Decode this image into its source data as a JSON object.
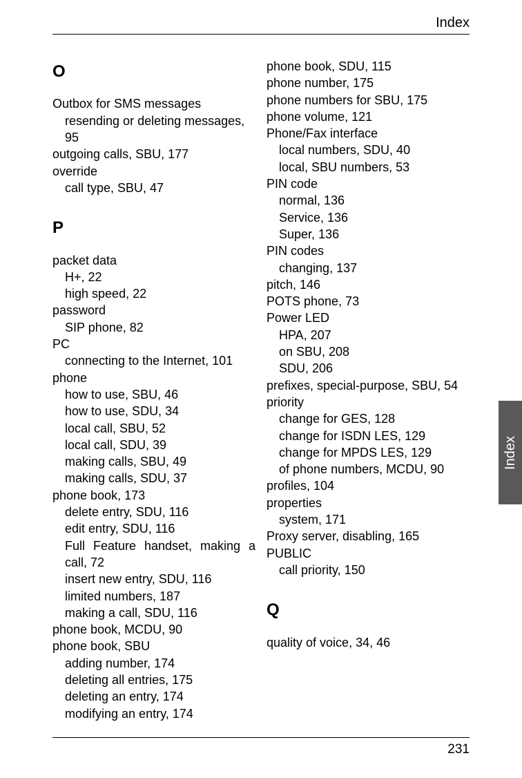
{
  "header": {
    "title": "Index"
  },
  "sideTab": {
    "label": "Index"
  },
  "footer": {
    "pageNumber": "231"
  },
  "letters": {
    "O": "O",
    "P": "P",
    "Q": "Q"
  },
  "left": {
    "o1": "Outbox for SMS messages",
    "o1a": "resending or deleting messages, 95",
    "o2": "outgoing calls, SBU, 177",
    "o3": "override",
    "o3a": "call type, SBU, 47",
    "p1": "packet data",
    "p1a": "H+, 22",
    "p1b": "high speed, 22",
    "p2": "password",
    "p2a": "SIP phone, 82",
    "p3": "PC",
    "p3a": "connecting to the Internet, 101",
    "p4": "phone",
    "p4a": "how to use, SBU, 46",
    "p4b": "how to use, SDU, 34",
    "p4c": "local call, SBU, 52",
    "p4d": "local call, SDU, 39",
    "p4e": "making calls, SBU, 49",
    "p4f": "making calls, SDU, 37",
    "p5": "phone book, 173",
    "p5a": "delete entry, SDU, 116",
    "p5b": "edit entry, SDU, 116",
    "p5c": "Full Feature handset, making a call, 72",
    "p5d": "insert new entry, SDU, 116",
    "p5e": "limited numbers, 187",
    "p5f": "making a call, SDU, 116",
    "p6": "phone book, MCDU, 90",
    "p7": "phone book, SBU",
    "p7a": "adding number, 174",
    "p7b": "deleting all entries, 175",
    "p7c": "deleting an entry, 174",
    "p7d": "modifying an entry, 174"
  },
  "right": {
    "r1": "phone book, SDU, 115",
    "r2": "phone number, 175",
    "r3": "phone numbers for SBU, 175",
    "r4": "phone volume, 121",
    "r5": "Phone/Fax interface",
    "r5a": "local numbers, SDU, 40",
    "r5b": "local, SBU numbers, 53",
    "r6": "PIN code",
    "r6a": "normal, 136",
    "r6b": "Service, 136",
    "r6c": "Super, 136",
    "r7": "PIN codes",
    "r7a": "changing, 137",
    "r8": "pitch, 146",
    "r9": "POTS phone, 73",
    "r10": "Power LED",
    "r10a": "HPA, 207",
    "r10b": "on SBU, 208",
    "r10c": "SDU, 206",
    "r11": "prefixes, special-purpose, SBU, 54",
    "r12": "priority",
    "r12a": "change for GES, 128",
    "r12b": "change for ISDN LES, 129",
    "r12c": "change for MPDS LES, 129",
    "r12d": "of phone numbers, MCDU, 90",
    "r13": "profiles, 104",
    "r14": "properties",
    "r14a": "system, 171",
    "r15": "Proxy server, disabling, 165",
    "r16": "PUBLIC",
    "r16a": "call priority, 150",
    "q1": "quality of voice, 34, 46"
  }
}
